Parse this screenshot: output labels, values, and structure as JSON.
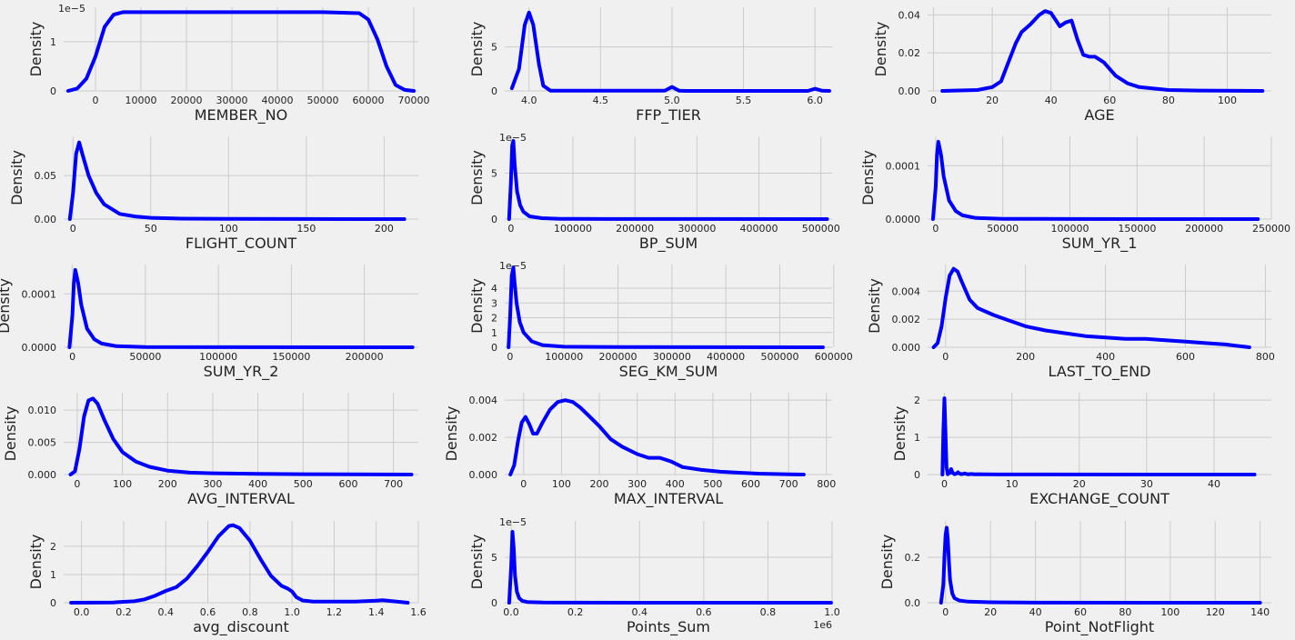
{
  "figure": {
    "background": "#f0f0f0",
    "line_color": "#0000ff",
    "grid_color": "#cbcbcb",
    "ylabel": "Density"
  },
  "chart_data": [
    {
      "type": "line",
      "title": "",
      "xlabel": "MEMBER_NO",
      "ylabel": "Density",
      "offset": "1e−5",
      "xlim": [
        -7000,
        71000
      ],
      "ylim": [
        0,
        1.7
      ],
      "xticks": [
        0,
        10000,
        20000,
        30000,
        40000,
        50000,
        60000,
        70000
      ],
      "xtick_labels": [
        "0",
        "10000",
        "20000",
        "30000",
        "40000",
        "50000",
        "60000",
        "70000"
      ],
      "yticks": [
        0,
        1
      ],
      "ytick_labels": [
        "0",
        "1"
      ],
      "x": [
        -6000,
        -4000,
        -2000,
        0,
        2000,
        4000,
        6000,
        10000,
        30000,
        50000,
        58000,
        60000,
        62000,
        64000,
        66000,
        68000,
        70000
      ],
      "y": [
        0,
        0.05,
        0.25,
        0.7,
        1.3,
        1.55,
        1.6,
        1.6,
        1.6,
        1.6,
        1.58,
        1.45,
        1.05,
        0.5,
        0.12,
        0.02,
        0
      ]
    },
    {
      "type": "line",
      "title": "",
      "xlabel": "FFP_TIER",
      "ylabel": "Density",
      "xlim": [
        3.83,
        6.12
      ],
      "ylim": [
        0,
        9.5
      ],
      "xticks": [
        4.0,
        4.5,
        5.0,
        5.5,
        6.0
      ],
      "xtick_labels": [
        "4.0",
        "4.5",
        "5.0",
        "5.5",
        "6.0"
      ],
      "yticks": [
        0,
        5
      ],
      "ytick_labels": [
        "0",
        "5"
      ],
      "x": [
        3.88,
        3.93,
        3.97,
        4.0,
        4.03,
        4.07,
        4.1,
        4.15,
        4.95,
        5.0,
        5.05,
        5.1,
        5.95,
        6.0,
        6.05,
        6.1
      ],
      "y": [
        0.3,
        2.5,
        7.5,
        8.9,
        7.5,
        3,
        0.6,
        0.02,
        0.02,
        0.45,
        0.02,
        0,
        0,
        0.25,
        0.02,
        0
      ]
    },
    {
      "type": "line",
      "title": "",
      "xlabel": "AGE",
      "ylabel": "Density",
      "xlim": [
        -2,
        115
      ],
      "ylim": [
        0,
        0.044
      ],
      "xticks": [
        0,
        20,
        40,
        60,
        80,
        100
      ],
      "xtick_labels": [
        "0",
        "20",
        "40",
        "60",
        "80",
        "100"
      ],
      "yticks": [
        0,
        0.02,
        0.04
      ],
      "ytick_labels": [
        "0.00",
        "0.02",
        "0.04"
      ],
      "x": [
        3,
        15,
        20,
        23,
        25,
        28,
        30,
        33,
        36,
        38,
        40,
        43,
        45,
        47,
        49,
        51,
        53,
        55,
        58,
        62,
        66,
        70,
        80,
        90,
        112
      ],
      "y": [
        0,
        0.0005,
        0.002,
        0.005,
        0.013,
        0.025,
        0.031,
        0.035,
        0.04,
        0.042,
        0.041,
        0.034,
        0.036,
        0.037,
        0.027,
        0.019,
        0.018,
        0.018,
        0.015,
        0.008,
        0.004,
        0.002,
        0.0005,
        0.0002,
        0
      ]
    },
    {
      "type": "line",
      "title": "",
      "xlabel": "FLIGHT_COUNT",
      "ylabel": "Density",
      "xlim": [
        -6,
        222
      ],
      "ylim": [
        0,
        0.095
      ],
      "xticks": [
        0,
        50,
        100,
        150,
        200
      ],
      "xtick_labels": [
        "0",
        "50",
        "100",
        "150",
        "200"
      ],
      "yticks": [
        0,
        0.05
      ],
      "ytick_labels": [
        "0.00",
        "0.05"
      ],
      "x": [
        -2,
        0,
        2,
        4,
        6,
        10,
        15,
        20,
        30,
        40,
        50,
        70,
        100,
        150,
        213
      ],
      "y": [
        0,
        0.03,
        0.075,
        0.088,
        0.075,
        0.05,
        0.03,
        0.017,
        0.006,
        0.003,
        0.0015,
        0.0005,
        0.0002,
        0.0001,
        0
      ]
    },
    {
      "type": "line",
      "title": "",
      "xlabel": "BP_SUM",
      "ylabel": "Density",
      "offset": "1e−5",
      "xlim": [
        -10000,
        518000
      ],
      "ylim": [
        0,
        9
      ],
      "xticks": [
        0,
        100000,
        200000,
        300000,
        400000,
        500000
      ],
      "xtick_labels": [
        "0",
        "100000",
        "200000",
        "300000",
        "400000",
        "500000"
      ],
      "yticks": [
        0,
        5
      ],
      "ytick_labels": [
        "0",
        "5"
      ],
      "x": [
        -3000,
        0,
        2000,
        4000,
        6000,
        10000,
        15000,
        20000,
        30000,
        50000,
        80000,
        150000,
        300000,
        510000
      ],
      "y": [
        0,
        4,
        8,
        8.5,
        6,
        3,
        1.5,
        0.8,
        0.3,
        0.1,
        0.03,
        0.01,
        0.005,
        0
      ]
    },
    {
      "type": "line",
      "title": "",
      "xlabel": "SUM_YR_1",
      "ylabel": "Density",
      "xlim": [
        -6000,
        250000
      ],
      "ylim": [
        0,
        0.000155
      ],
      "xticks": [
        0,
        50000,
        100000,
        150000,
        200000,
        250000
      ],
      "xtick_labels": [
        "0",
        "50000",
        "100000",
        "150000",
        "200000",
        "250000"
      ],
      "yticks": [
        0,
        0.0001
      ],
      "ytick_labels": [
        "0.0000",
        "0.0001"
      ],
      "x": [
        -2000,
        0,
        1000,
        2000,
        4000,
        6000,
        10000,
        15000,
        20000,
        30000,
        50000,
        100000,
        240000
      ],
      "y": [
        0,
        6e-05,
        0.00012,
        0.000145,
        0.00012,
        8e-05,
        3.5e-05,
        1.5e-05,
        7e-06,
        2e-06,
        5e-07,
        1e-07,
        0
      ]
    },
    {
      "type": "line",
      "title": "",
      "xlabel": "SUM_YR_2",
      "ylabel": "Density",
      "xlim": [
        -6000,
        237000
      ],
      "ylim": [
        0,
        0.000155
      ],
      "xticks": [
        0,
        50000,
        100000,
        150000,
        200000
      ],
      "xtick_labels": [
        "0",
        "50000",
        "100000",
        "150000",
        "200000"
      ],
      "yticks": [
        0,
        0.0001
      ],
      "ytick_labels": [
        "0.0000",
        "0.0001"
      ],
      "x": [
        -2000,
        0,
        1000,
        2000,
        4000,
        6000,
        10000,
        15000,
        20000,
        30000,
        50000,
        100000,
        233000
      ],
      "y": [
        0,
        6e-05,
        0.00012,
        0.000145,
        0.00012,
        8e-05,
        3.5e-05,
        1.5e-05,
        7e-06,
        2e-06,
        5e-07,
        1e-07,
        0
      ]
    },
    {
      "type": "line",
      "title": "",
      "xlabel": "SEG_KM_SUM",
      "ylabel": "Density",
      "offset": "1e−5",
      "xlim": [
        -10000,
        597000
      ],
      "ylim": [
        0,
        5.6
      ],
      "xticks": [
        0,
        100000,
        200000,
        300000,
        400000,
        500000,
        600000
      ],
      "xtick_labels": [
        "0",
        "100000",
        "200000",
        "300000",
        "400000",
        "500000",
        "600000"
      ],
      "yticks": [
        0,
        1,
        2,
        3,
        4
      ],
      "ytick_labels": [
        "0",
        "1",
        "2",
        "3",
        "4"
      ],
      "x": [
        -3000,
        0,
        3000,
        6000,
        8000,
        12000,
        18000,
        25000,
        40000,
        60000,
        100000,
        200000,
        580000
      ],
      "y": [
        0,
        2,
        4.8,
        5.4,
        4.5,
        3,
        1.7,
        1,
        0.4,
        0.15,
        0.04,
        0.01,
        0
      ]
    },
    {
      "type": "line",
      "title": "",
      "xlabel": "LAST_TO_END",
      "ylabel": "Density",
      "xlim": [
        -45,
        815
      ],
      "ylim": [
        0,
        0.0059
      ],
      "xticks": [
        0,
        200,
        400,
        600,
        800
      ],
      "xtick_labels": [
        "0",
        "200",
        "400",
        "600",
        "800"
      ],
      "yticks": [
        0,
        0.002,
        0.004
      ],
      "ytick_labels": [
        "0.000",
        "0.002",
        "0.004"
      ],
      "x": [
        -30,
        -20,
        -10,
        0,
        10,
        20,
        30,
        40,
        60,
        80,
        120,
        160,
        200,
        250,
        300,
        350,
        400,
        450,
        500,
        550,
        600,
        650,
        700,
        730,
        760
      ],
      "y": [
        0,
        0.0003,
        0.0015,
        0.0035,
        0.0051,
        0.0056,
        0.0054,
        0.0047,
        0.0034,
        0.0028,
        0.0023,
        0.0019,
        0.0015,
        0.0012,
        0.001,
        0.0008,
        0.0007,
        0.0006,
        0.0006,
        0.0005,
        0.0004,
        0.0003,
        0.0002,
        0.0001,
        0
      ]
    },
    {
      "type": "line",
      "title": "",
      "xlabel": "AVG_INTERVAL",
      "ylabel": "Density",
      "xlim": [
        -30,
        755
      ],
      "ylim": [
        0,
        0.0127
      ],
      "xticks": [
        0,
        100,
        200,
        300,
        400,
        500,
        600,
        700
      ],
      "xtick_labels": [
        "0",
        "100",
        "200",
        "300",
        "400",
        "500",
        "600",
        "700"
      ],
      "yticks": [
        0,
        0.005,
        0.01
      ],
      "ytick_labels": [
        "0.000",
        "0.005",
        "0.010"
      ],
      "x": [
        -15,
        -5,
        5,
        15,
        25,
        35,
        45,
        60,
        80,
        100,
        130,
        160,
        200,
        250,
        300,
        400,
        500,
        740
      ],
      "y": [
        0,
        0.0005,
        0.004,
        0.009,
        0.0115,
        0.0118,
        0.011,
        0.0085,
        0.0055,
        0.0035,
        0.002,
        0.0012,
        0.0006,
        0.0003,
        0.0002,
        0.0001,
        5e-05,
        0
      ]
    },
    {
      "type": "line",
      "title": "",
      "xlabel": "MAX_INTERVAL",
      "ylabel": "Density",
      "xlim": [
        -50,
        815
      ],
      "ylim": [
        0,
        0.0044
      ],
      "xticks": [
        0,
        100,
        200,
        300,
        400,
        500,
        600,
        700,
        800
      ],
      "xtick_labels": [
        "0",
        "100",
        "200",
        "300",
        "400",
        "500",
        "600",
        "700",
        "800"
      ],
      "yticks": [
        0,
        0.002,
        0.004
      ],
      "ytick_labels": [
        "0.000",
        "0.002",
        "0.004"
      ],
      "x": [
        -35,
        -25,
        -15,
        -5,
        5,
        15,
        25,
        35,
        50,
        70,
        90,
        110,
        130,
        150,
        170,
        200,
        230,
        260,
        300,
        330,
        360,
        390,
        420,
        470,
        520,
        570,
        620,
        700,
        740
      ],
      "y": [
        0,
        0.0005,
        0.0018,
        0.0028,
        0.0031,
        0.0027,
        0.0022,
        0.0022,
        0.0028,
        0.0035,
        0.0039,
        0.004,
        0.0039,
        0.0036,
        0.0032,
        0.0026,
        0.0019,
        0.0015,
        0.0011,
        0.0009,
        0.0009,
        0.0007,
        0.0004,
        0.00025,
        0.00015,
        0.0001,
        5e-05,
        1e-05,
        0
      ]
    },
    {
      "type": "line",
      "title": "",
      "xlabel": "EXCHANGE_COUNT",
      "ylabel": "Density",
      "xlim": [
        -2.5,
        48.5
      ],
      "ylim": [
        0,
        2.2
      ],
      "xticks": [
        0,
        10,
        20,
        30,
        40
      ],
      "xtick_labels": [
        "0",
        "10",
        "20",
        "30",
        "40"
      ],
      "yticks": [
        0,
        1,
        2
      ],
      "ytick_labels": [
        "0",
        "1",
        "2"
      ],
      "x": [
        -0.3,
        -0.15,
        0,
        0.15,
        0.3,
        0.5,
        0.8,
        1.0,
        1.2,
        1.5,
        1.8,
        2.0,
        2.2,
        2.5,
        2.8,
        3.0,
        3.2,
        3.5,
        4.0,
        4.5,
        5,
        6,
        8,
        46
      ],
      "y": [
        0,
        1.2,
        2.05,
        1.2,
        0.2,
        0.01,
        0.05,
        0.15,
        0.05,
        0.01,
        0.03,
        0.06,
        0.03,
        0.01,
        0.02,
        0.03,
        0.02,
        0.005,
        0.015,
        0.008,
        0.01,
        0.004,
        0.002,
        0
      ]
    },
    {
      "type": "line",
      "title": "",
      "xlabel": "avg_discount",
      "ylabel": "Density",
      "xlim": [
        -0.085,
        1.6
      ],
      "ylim": [
        0,
        2.9
      ],
      "xticks": [
        0,
        0.2,
        0.4,
        0.6,
        0.8,
        1.0,
        1.2,
        1.4,
        1.6
      ],
      "xtick_labels": [
        "0.0",
        "0.2",
        "0.4",
        "0.6",
        "0.8",
        "1.0",
        "1.2",
        "1.4",
        "1.6"
      ],
      "yticks": [
        0,
        1,
        2
      ],
      "ytick_labels": [
        "0",
        "1",
        "2"
      ],
      "x": [
        -0.05,
        0.15,
        0.25,
        0.3,
        0.35,
        0.4,
        0.45,
        0.5,
        0.55,
        0.6,
        0.65,
        0.7,
        0.72,
        0.75,
        0.8,
        0.85,
        0.9,
        0.95,
        0.98,
        1.0,
        1.02,
        1.05,
        1.1,
        1.3,
        1.4,
        1.43,
        1.47,
        1.55
      ],
      "y": [
        0,
        0.01,
        0.05,
        0.12,
        0.25,
        0.42,
        0.55,
        0.85,
        1.3,
        1.8,
        2.35,
        2.72,
        2.75,
        2.65,
        2.2,
        1.55,
        0.95,
        0.6,
        0.5,
        0.4,
        0.2,
        0.08,
        0.04,
        0.04,
        0.07,
        0.09,
        0.06,
        0
      ]
    },
    {
      "type": "line",
      "title": "",
      "xlabel": "Points_Sum",
      "ylabel": "Density",
      "offset": "1e−5",
      "x_offset": "1e6",
      "xlim": [
        -0.02,
        1.0
      ],
      "ylim": [
        0,
        9
      ],
      "xticks": [
        0,
        0.2,
        0.4,
        0.6,
        0.8,
        1.0
      ],
      "xtick_labels": [
        "0.0",
        "0.2",
        "0.4",
        "0.6",
        "0.8",
        "1.0"
      ],
      "yticks": [
        0,
        5
      ],
      "ytick_labels": [
        "0",
        "5"
      ],
      "x": [
        -0.006,
        0,
        0.004,
        0.008,
        0.012,
        0.018,
        0.025,
        0.035,
        0.05,
        0.1,
        0.2,
        0.4,
        0.997
      ],
      "y": [
        0,
        4,
        7.8,
        6,
        3,
        1.2,
        0.5,
        0.2,
        0.08,
        0.03,
        0.01,
        0.005,
        0
      ]
    },
    {
      "type": "line",
      "title": "",
      "xlabel": "Point_NotFlight",
      "ylabel": "Density",
      "xlim": [
        -8,
        145
      ],
      "ylim": [
        0,
        0.36
      ],
      "xticks": [
        0,
        20,
        40,
        60,
        80,
        100,
        120,
        140
      ],
      "xtick_labels": [
        "0",
        "20",
        "40",
        "60",
        "80",
        "100",
        "120",
        "140"
      ],
      "yticks": [
        0,
        0.2
      ],
      "ytick_labels": [
        "0.0",
        "0.2"
      ],
      "x": [
        -2,
        -1,
        -0.5,
        0,
        0.5,
        1,
        1.5,
        2,
        3,
        4,
        6,
        10,
        20,
        40,
        140
      ],
      "y": [
        0,
        0.08,
        0.2,
        0.3,
        0.33,
        0.28,
        0.18,
        0.1,
        0.04,
        0.02,
        0.01,
        0.005,
        0.002,
        0.0005,
        0
      ]
    }
  ]
}
